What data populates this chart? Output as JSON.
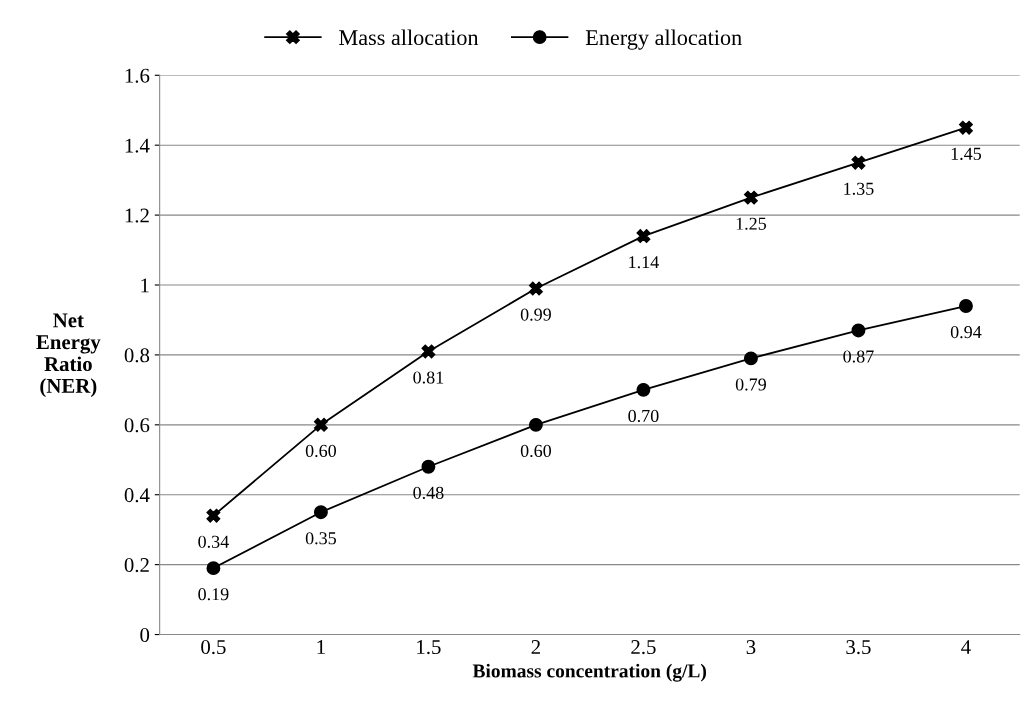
{
  "chart_data": {
    "type": "line",
    "xlabel": "Biomass concentration (g/L)",
    "ylabel": "Net\nEnergy\nRatio\n(NER)",
    "categories": [
      "0.5",
      "1",
      "1.5",
      "2",
      "2.5",
      "3",
      "3.5",
      "4"
    ],
    "series": [
      {
        "name": "Mass allocation",
        "color": "#000000",
        "marker": "cross",
        "values": [
          0.34,
          0.6,
          0.81,
          0.99,
          1.14,
          1.25,
          1.35,
          1.45
        ],
        "value_labels": [
          "0.34",
          "0.60",
          "0.81",
          "0.99",
          "1.14",
          "1.25",
          "1.35",
          "1.45"
        ]
      },
      {
        "name": "Energy allocation",
        "color": "#000000",
        "marker": "circle",
        "values": [
          0.19,
          0.35,
          0.48,
          0.6,
          0.7,
          0.79,
          0.87,
          0.94
        ],
        "value_labels": [
          "0.19",
          "0.35",
          "0.48",
          "0.60",
          "0.70",
          "0.79",
          "0.87",
          "0.94"
        ]
      }
    ],
    "ylim": [
      0,
      1.6
    ],
    "yticks": [
      0,
      0.2,
      0.4,
      0.6,
      0.8,
      1,
      1.2,
      1.4,
      1.6
    ],
    "grid": "y",
    "legend": "top",
    "line_style": "solid"
  }
}
